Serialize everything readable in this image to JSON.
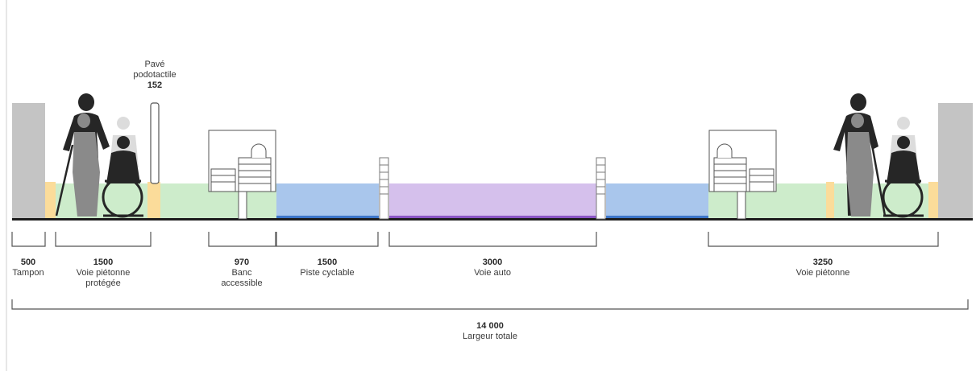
{
  "segments": [
    {
      "id": "tampon",
      "value": "500",
      "label": "Tampon"
    },
    {
      "id": "voie-pietonne-protegee",
      "value": "1500",
      "label": "Voie piétonne protégée"
    },
    {
      "id": "banc-accessible",
      "value": "970",
      "label": "Banc accessible"
    },
    {
      "id": "piste-cyclable",
      "value": "1500",
      "label": "Piste cyclable"
    },
    {
      "id": "voie-auto",
      "value": "3000",
      "label": "Voie auto"
    },
    {
      "id": "voie-pietonne",
      "value": "3250",
      "label": "Voie piétonne"
    }
  ],
  "callout": {
    "line1": "Pavé",
    "line2": "podotactile",
    "value": "152"
  },
  "total": {
    "value": "14 000",
    "label": "Largeur totale"
  },
  "colors": {
    "wall": "#c4c4c4",
    "pedestrian": "#cdeccb",
    "tactile": "#fbdc9a",
    "bike": "#a9c6ec",
    "bike_edge": "#3d76c9",
    "car": "#d5c0ec",
    "car_edge": "#8a55c4",
    "ground": "#1c1c1c",
    "silhouette": "#262626",
    "ghost": "#dcdcdc",
    "bracket": "#555555"
  }
}
